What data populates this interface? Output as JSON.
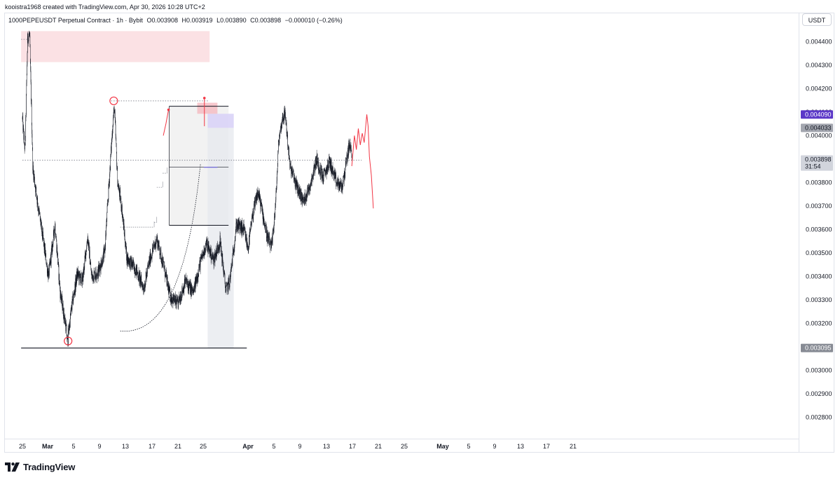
{
  "header": {
    "credit": "kooistra1968 created with TradingView.com, Apr 30, 2026 10:28 UTC+2"
  },
  "legend": {
    "symbol": "1000PEPEUSDT Perpetual Contract · 1h · Bybit",
    "open": "O0.003908",
    "high": "H0.003919",
    "low": "L0.003890",
    "close": "C0.003898",
    "change": "−0.000010 (−0.26%)"
  },
  "currency_button": "USDT",
  "brand": {
    "name": "TradingView"
  },
  "colors": {
    "candle": "#131722",
    "resistance_zone": "#f9d7db",
    "target_zone": "#d9d3f7",
    "stop_zone": "#f4b5bc",
    "projection_line": "#f23645",
    "current_price_line": "#5b4fd9",
    "target_badge": "#5b37c8",
    "gray_badge": "#878b94"
  },
  "chart_data": {
    "type": "candlestick",
    "symbol": "1000PEPEUSDT",
    "interval": "1h",
    "ylim": [
      0.00272,
      0.00454
    ],
    "y_ticks": [
      "0.004400",
      "0.004300",
      "0.004200",
      "0.004100",
      "0.004000",
      "0.003900",
      "0.003800",
      "0.003700",
      "0.003600",
      "0.003500",
      "0.003400",
      "0.003300",
      "0.003200",
      "0.003100",
      "0.003000",
      "0.002900",
      "0.002800"
    ],
    "x_ticks": [
      "25",
      "Mar",
      "5",
      "9",
      "13",
      "17",
      "21",
      "25",
      "Apr",
      "5",
      "9",
      "13",
      "17",
      "21",
      "25",
      "May",
      "5",
      "9",
      "13",
      "17",
      "21"
    ],
    "last_price": {
      "value": "0.003898",
      "countdown": "31:54"
    },
    "price_labels": [
      {
        "value": "0.004090",
        "style": "target"
      },
      {
        "value": "0.004033",
        "style": "gray"
      },
      {
        "value": "0.003095",
        "style": "support"
      }
    ],
    "candle_path": [
      [
        0,
        0.00407
      ],
      [
        0.4,
        0.00393
      ],
      [
        0.8,
        0.00442
      ],
      [
        1.1,
        0.00443
      ],
      [
        1.6,
        0.00386
      ],
      [
        2.4,
        0.0037
      ],
      [
        3.2,
        0.00355
      ],
      [
        4.0,
        0.0034
      ],
      [
        5.0,
        0.00362
      ],
      [
        5.8,
        0.00333
      ],
      [
        6.7,
        0.00318
      ],
      [
        6.9,
        0.00312
      ],
      [
        7.5,
        0.00326
      ],
      [
        8.4,
        0.00341
      ],
      [
        9.2,
        0.00338
      ],
      [
        10.0,
        0.00357
      ],
      [
        10.6,
        0.0034
      ],
      [
        11.6,
        0.00342
      ],
      [
        12.6,
        0.0035
      ],
      [
        13.9,
        0.00407
      ],
      [
        14.1,
        0.00412
      ],
      [
        14.6,
        0.0038
      ],
      [
        15.2,
        0.0037
      ],
      [
        16.0,
        0.00348
      ],
      [
        17.4,
        0.00343
      ],
      [
        18.6,
        0.00335
      ],
      [
        19.6,
        0.00348
      ],
      [
        20.6,
        0.00356
      ],
      [
        21.6,
        0.00345
      ],
      [
        22.6,
        0.00332
      ],
      [
        23.8,
        0.00328
      ],
      [
        25.0,
        0.00338
      ],
      [
        26.2,
        0.00333
      ],
      [
        27.2,
        0.00345
      ],
      [
        28.2,
        0.00354
      ],
      [
        29.3,
        0.00347
      ],
      [
        30.3,
        0.00355
      ],
      [
        31.2,
        0.00334
      ],
      [
        31.8,
        0.00338
      ],
      [
        32.8,
        0.00362
      ],
      [
        33.9,
        0.0036
      ],
      [
        34.6,
        0.00352
      ],
      [
        35.3,
        0.00366
      ],
      [
        36.1,
        0.00376
      ],
      [
        36.6,
        0.0037
      ],
      [
        37.6,
        0.00356
      ],
      [
        38.2,
        0.00352
      ],
      [
        38.8,
        0.0037
      ],
      [
        39.3,
        0.00398
      ],
      [
        39.9,
        0.00408
      ],
      [
        40.3,
        0.00409
      ],
      [
        41.0,
        0.00387
      ],
      [
        42.1,
        0.00378
      ],
      [
        43.1,
        0.00372
      ],
      [
        44.1,
        0.00379
      ],
      [
        45.1,
        0.0039
      ],
      [
        46.1,
        0.00382
      ],
      [
        47.1,
        0.00389
      ],
      [
        48.1,
        0.0038
      ],
      [
        49.0,
        0.00378
      ],
      [
        49.7,
        0.00389
      ],
      [
        50.1,
        0.00396
      ],
      [
        50.5,
        0.00393
      ]
    ],
    "projection_path": [
      [
        50.5,
        0.00387
      ],
      [
        50.9,
        0.004
      ],
      [
        51.2,
        0.00394
      ],
      [
        51.5,
        0.00403
      ],
      [
        51.8,
        0.00396
      ],
      [
        52.1,
        0.00401
      ],
      [
        52.4,
        0.00397
      ],
      [
        52.8,
        0.00409
      ],
      [
        53.0,
        0.00404
      ],
      [
        53.2,
        0.00391
      ],
      [
        53.5,
        0.00383
      ],
      [
        53.8,
        0.00369
      ]
    ],
    "projection_start_day": 50.5,
    "annotations": [
      {
        "kind": "resistance_zone",
        "day_from": -0.2,
        "day_to": 28.7,
        "price_top": 0.004445,
        "price_bottom": 0.004313
      },
      {
        "kind": "dotted_level",
        "day_from": -0.2,
        "day_to": 1.0,
        "price": 0.00441
      },
      {
        "kind": "dotted_level",
        "day_from": 13.6,
        "day_to": 28.5,
        "price": 0.004148
      },
      {
        "kind": "dotted_level",
        "day_from": 0.0,
        "day_to": 52.0,
        "price": 0.003895
      },
      {
        "kind": "circle",
        "day": 14.0,
        "price": 0.004148
      },
      {
        "kind": "circle",
        "day": 7.0,
        "price": 0.003125
      },
      {
        "kind": "support_line",
        "day_from": -0.2,
        "day_to": 34.4,
        "price": 0.003095
      },
      {
        "kind": "range_box",
        "day_from": 22.5,
        "day_to": 31.6,
        "price_top": 0.004125,
        "price_bottom": 0.003618
      },
      {
        "kind": "range_midline",
        "day_from": 22.5,
        "day_to": 31.6,
        "price": 0.003865
      },
      {
        "kind": "target_zone",
        "day_from": 28.4,
        "day_to": 32.4,
        "price_top": 0.004093,
        "price_bottom": 0.004033
      },
      {
        "kind": "stop_zone",
        "day_from": 26.8,
        "day_to": 29.9,
        "price_top": 0.00414,
        "price_bottom": 0.004093
      },
      {
        "kind": "projection_shade",
        "day_from": 28.4,
        "day_to": 32.4,
        "price_top": 0.004033,
        "price_bottom": 0.003095
      },
      {
        "kind": "current_price_line",
        "day_from": 27.8,
        "day_to": 29.9,
        "price": 0.003865
      },
      {
        "kind": "red_dot",
        "day": 27.9,
        "price": 0.00416
      },
      {
        "kind": "red_dot",
        "day": 22.4,
        "price": 0.00411
      }
    ],
    "step_levels": [
      {
        "day_from": 15.0,
        "day_to": 20.2,
        "price": 0.00361
      },
      {
        "day_from": 20.2,
        "day_to": 20.6,
        "price": 0.00363
      },
      {
        "day_from": 20.6,
        "day_to": 21.5,
        "price": 0.00378
      },
      {
        "day_from": 21.5,
        "day_to": 22.2,
        "price": 0.00384
      }
    ],
    "arc": {
      "day_from": 15.0,
      "price_from": 0.003168,
      "day_to": 27.3,
      "price_to": 0.00388
    }
  }
}
